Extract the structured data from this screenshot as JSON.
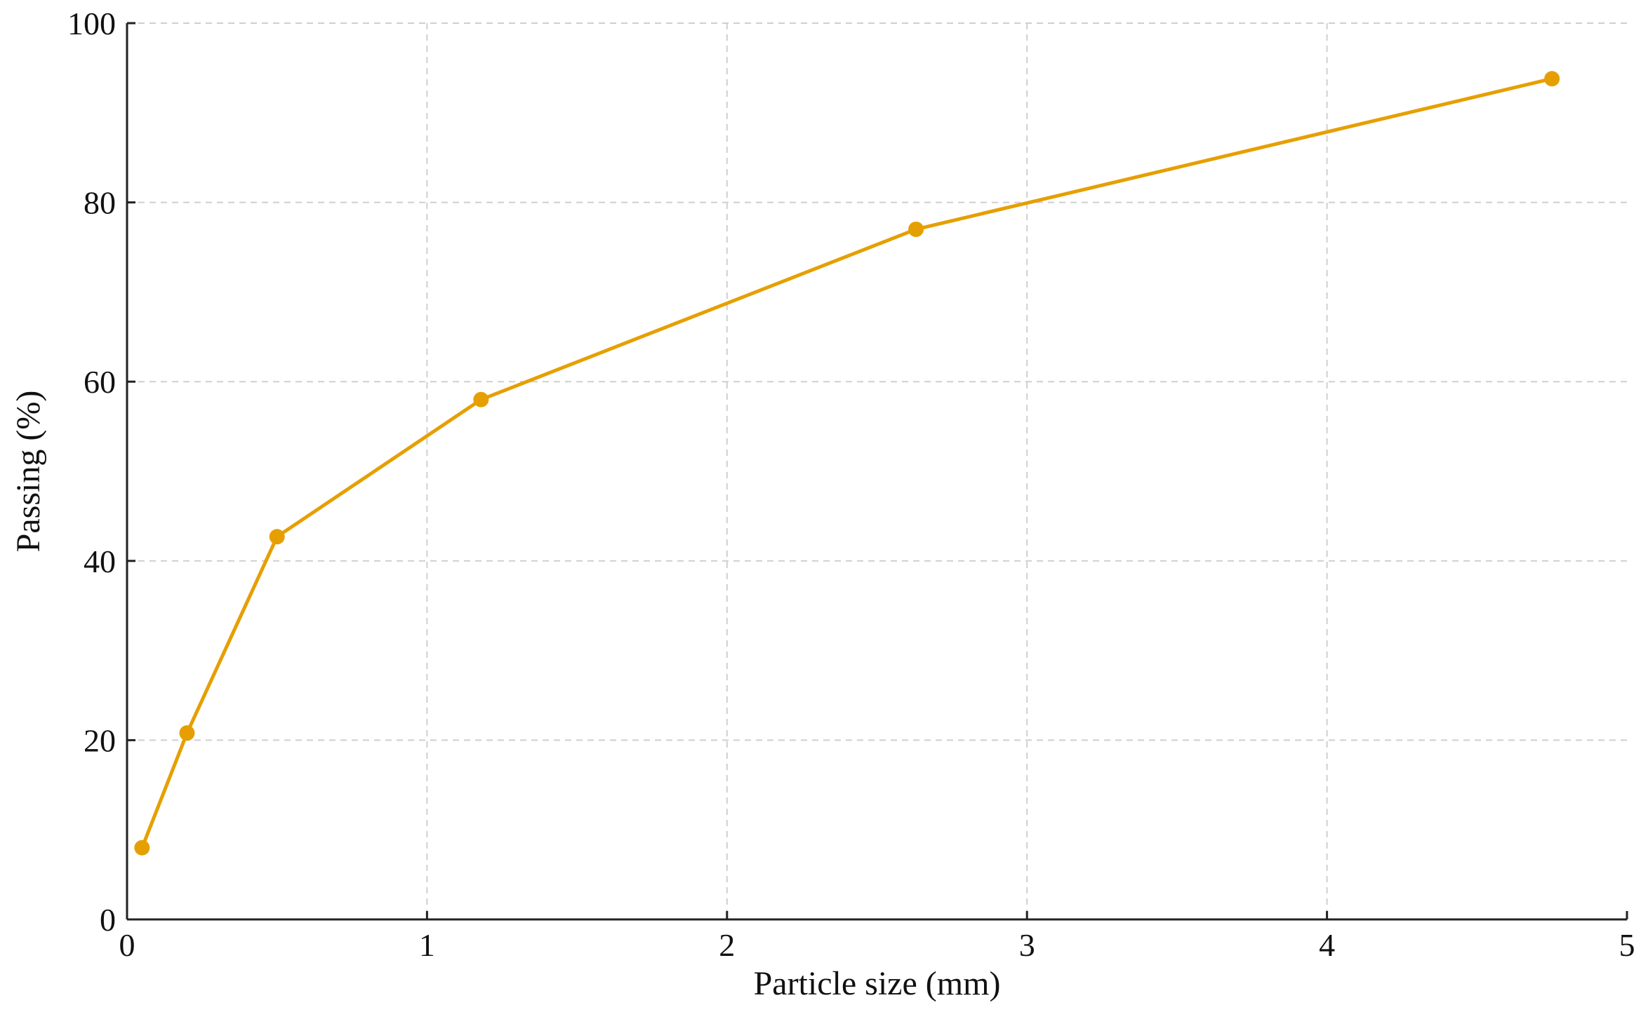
{
  "chart_data": {
    "type": "line",
    "title": "",
    "xlabel": "Particle size (mm)",
    "ylabel": "Passing (%)",
    "xlim": [
      0,
      5
    ],
    "ylim": [
      0,
      100
    ],
    "x_ticks": [
      "0",
      "1",
      "2",
      "3",
      "4",
      "5"
    ],
    "y_ticks": [
      "0",
      "20",
      "40",
      "60",
      "80",
      "100"
    ],
    "grid": true,
    "legend": "none",
    "colors": {
      "series": "#E69F00",
      "axis": "#222222",
      "grid": "#cfcfcf"
    },
    "series": [
      {
        "marker": "circle",
        "x": [
          0.05,
          0.2,
          0.5,
          1.18,
          2.63,
          4.75
        ],
        "y": [
          8,
          20.8,
          42.7,
          58,
          77,
          93.8
        ]
      }
    ]
  }
}
